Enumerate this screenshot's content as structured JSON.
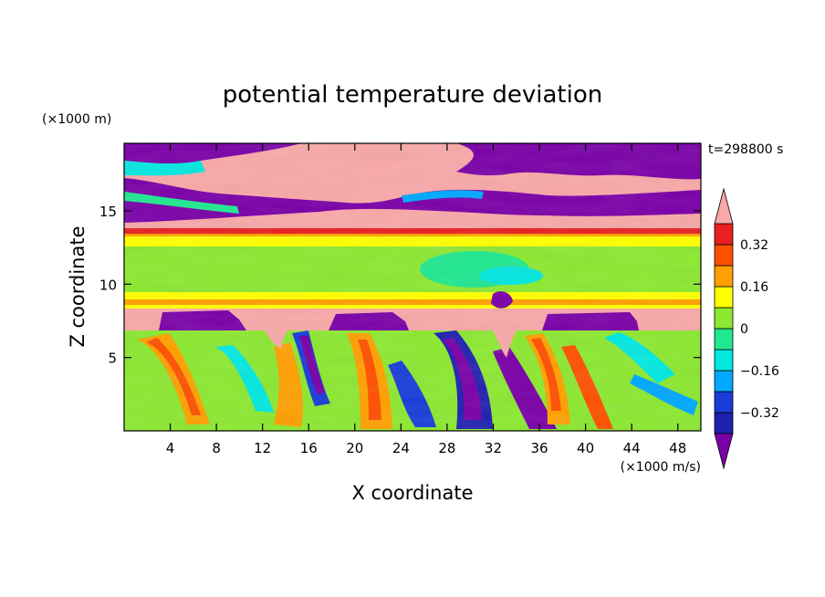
{
  "chart_data": {
    "type": "heatmap",
    "title": "potential temperature deviation",
    "xlabel": "X coordinate",
    "ylabel": "Z coordinate",
    "x_unit_label": "(×1000 m/s)",
    "y_unit_label": "(×1000 m)",
    "time_label": "t=298800 s",
    "xlim": [
      0,
      50
    ],
    "ylim": [
      0,
      19.6
    ],
    "x_ticks": [
      4,
      8,
      12,
      16,
      20,
      24,
      28,
      32,
      36,
      40,
      44,
      48
    ],
    "x_tick_labels": [
      "4",
      "8",
      "12",
      "16",
      "20",
      "24",
      "28",
      "32",
      "36",
      "40",
      "44",
      "48"
    ],
    "y_ticks": [
      5,
      10,
      15
    ],
    "y_tick_labels": [
      "5",
      "10",
      "15"
    ],
    "colorbar": {
      "levels": [
        -0.4,
        -0.32,
        -0.24,
        -0.16,
        -0.08,
        0,
        0.08,
        0.16,
        0.24,
        0.32,
        0.4
      ],
      "labels": [
        "0.32",
        "0.16",
        "0",
        "−0.16",
        "−0.32"
      ],
      "label_values": [
        0.32,
        0.16,
        0,
        -0.16,
        -0.32
      ],
      "colors": [
        "#7a00a8",
        "#2020b0",
        "#1a3cd8",
        "#00a8ff",
        "#00e8e0",
        "#20e890",
        "#8ce830",
        "#ffff00",
        "#ffa000",
        "#ff5000",
        "#e82020",
        "#f8a8a8"
      ],
      "extend": "both"
    },
    "grid": false,
    "legend": "right-colorbar"
  }
}
